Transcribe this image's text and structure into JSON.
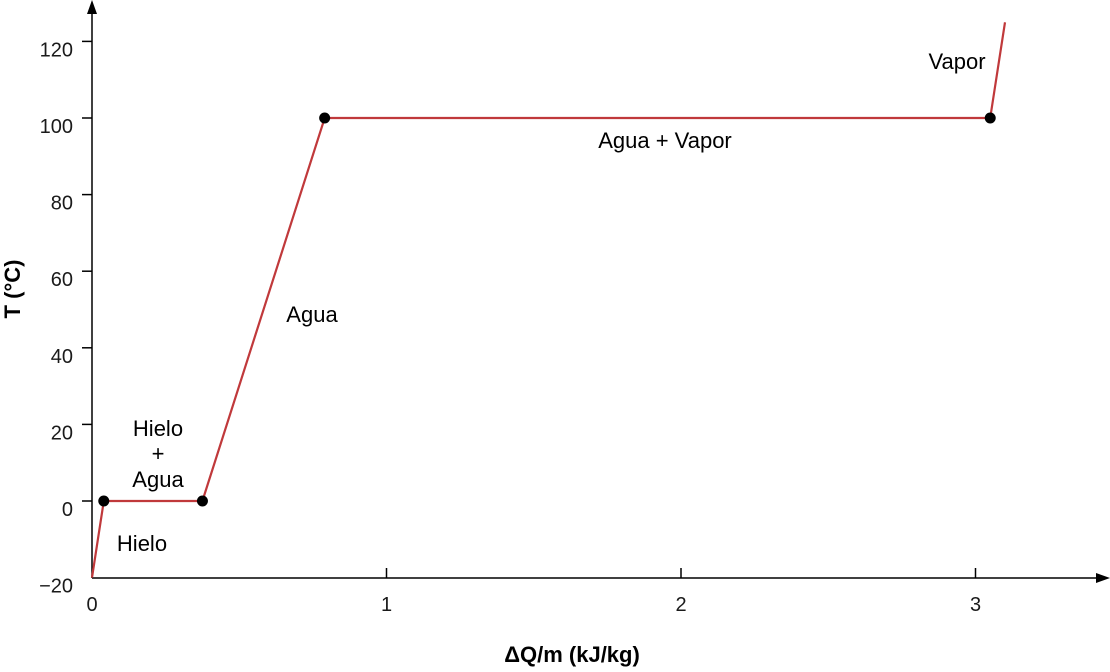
{
  "chart_data": {
    "type": "line",
    "xlabel": "ΔQ/m (kJ/kg)",
    "ylabel": "T (°C)",
    "xlim": [
      0,
      3.4
    ],
    "ylim": [
      -20,
      130
    ],
    "x_ticks": [
      "0",
      "1",
      "2",
      "3"
    ],
    "y_ticks": [
      "−20",
      "0",
      "20",
      "40",
      "60",
      "80",
      "100",
      "120"
    ],
    "grid": false,
    "series": [
      {
        "values": [
          {
            "x": 0.0,
            "y": -20
          },
          {
            "x": 0.04,
            "y": 0
          },
          {
            "x": 0.375,
            "y": 0
          },
          {
            "x": 0.79,
            "y": 100
          },
          {
            "x": 3.05,
            "y": 100
          },
          {
            "x": 3.1,
            "y": 125
          }
        ]
      }
    ],
    "marked_points": [
      {
        "x": 0.04,
        "y": 0
      },
      {
        "x": 0.375,
        "y": 0
      },
      {
        "x": 0.79,
        "y": 100
      },
      {
        "x": 3.05,
        "y": 100
      }
    ],
    "annotations": {
      "hielo": "Hielo",
      "hielo_agua": [
        "Hielo",
        "+",
        "Agua"
      ],
      "agua": "Agua",
      "agua_vapor": "Agua + Vapor",
      "vapor": "Vapor"
    },
    "colors": {
      "line": "#c0393b",
      "points": "#000000",
      "axis": "#000000"
    }
  }
}
